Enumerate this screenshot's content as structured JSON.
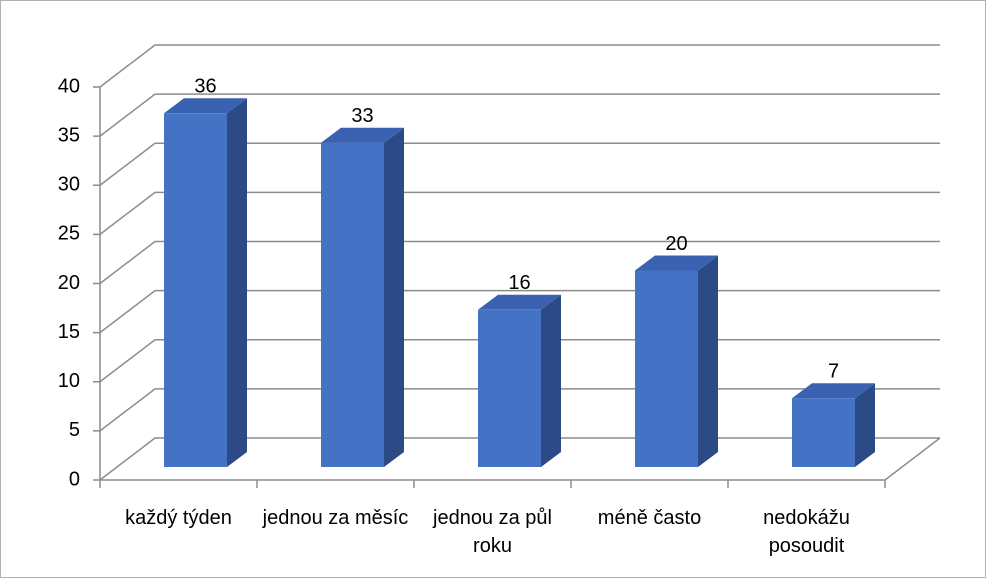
{
  "chart_data": {
    "type": "bar3d",
    "categories": [
      "každý týden",
      "jednou za měsíc",
      "jednou za půl roku",
      "méně často",
      "nedokážu posoudit"
    ],
    "values": [
      36,
      33,
      16,
      20,
      7
    ],
    "color": "#4472c4",
    "ylim": [
      0,
      40
    ],
    "yticks": [
      0,
      5,
      10,
      15,
      20,
      25,
      30,
      35,
      40
    ],
    "grid": true
  }
}
